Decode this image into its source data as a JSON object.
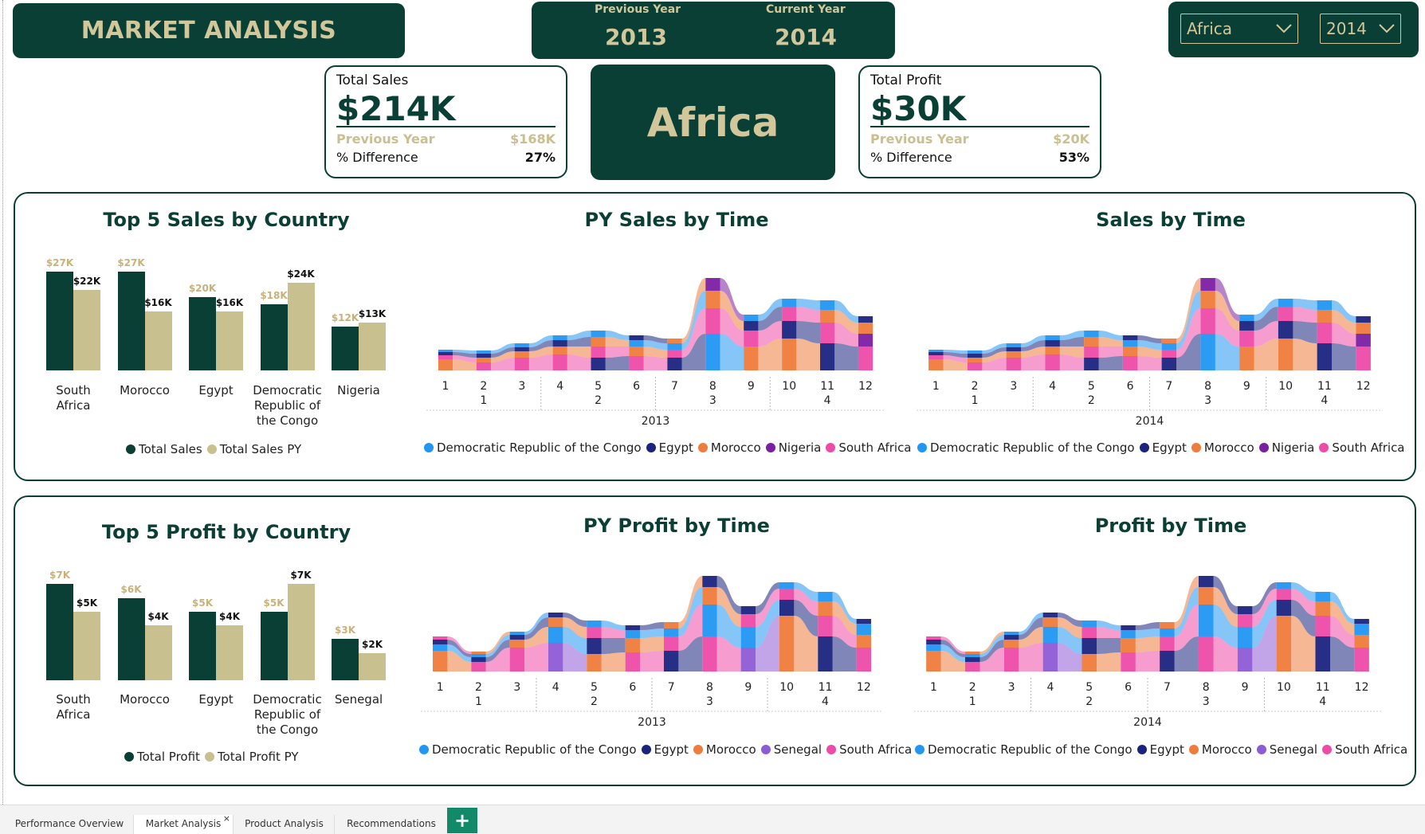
{
  "header": {
    "title": "MARKET ANALYSIS",
    "previous_year_label": "Previous Year",
    "previous_year": "2013",
    "current_year_label": "Current Year",
    "current_year": "2014"
  },
  "slicers": {
    "region": "Africa",
    "year": "2014"
  },
  "kpis": {
    "sales": {
      "label": "Total Sales",
      "value": "$214K",
      "py_label": "Previous Year",
      "py_value": "$168K",
      "diff_label": "% Difference",
      "diff_value": "27%"
    },
    "region_name": "Africa",
    "profit": {
      "label": "Total Profit",
      "value": "$30K",
      "py_label": "Previous Year",
      "py_value": "$20K",
      "diff_label": "% Difference",
      "diff_value": "53%"
    }
  },
  "sales_panel": {
    "bar_title": "Top 5 Sales by Country",
    "py_title": "PY Sales by Time",
    "cy_title": "Sales by Time",
    "py_year": "2013",
    "cy_year": "2014",
    "legend": [
      "Total Sales",
      "Total Sales PY"
    ],
    "stream_legend": [
      "Democratic Republic of the Congo",
      "Egypt",
      "Morocco",
      "Nigeria",
      "South Africa"
    ]
  },
  "profit_panel": {
    "bar_title": "Top 5 Profit by Country",
    "py_title": "PY Profit by Time",
    "cy_title": "Profit by Time",
    "py_year": "2013",
    "cy_year": "2014",
    "legend": [
      "Total Profit",
      "Total Profit PY"
    ],
    "stream_legend": [
      "Democratic Republic of the Congo",
      "Egypt",
      "Morocco",
      "Senegal",
      "South Africa"
    ]
  },
  "colors": {
    "dark_green": "#0a3f35",
    "tan": "#c9c08f",
    "congo": "#2196f3",
    "egypt": "#1a237e",
    "morocco": "#ef7b3c",
    "nigeria": "#7b1fa2",
    "senegal": "#8e5bd6",
    "south_africa": "#ee4ba8"
  },
  "chart_data": [
    {
      "type": "bar",
      "title": "Top 5 Sales by Country",
      "categories": [
        "South Africa",
        "Morocco",
        "Egypt",
        "Democratic Republic of the Congo",
        "Nigeria"
      ],
      "series": [
        {
          "name": "Total Sales",
          "values": [
            27,
            27,
            20,
            18,
            12
          ],
          "labels": [
            "$27K",
            "$27K",
            "$20K",
            "$18K",
            "$12K"
          ]
        },
        {
          "name": "Total Sales PY",
          "values": [
            22,
            16,
            16,
            24,
            13
          ],
          "labels": [
            "$22K",
            "$16K",
            "$16K",
            "$24K",
            "$13K"
          ]
        }
      ],
      "ylim": [
        0,
        30
      ]
    },
    {
      "type": "area",
      "title": "PY Sales by Time",
      "x": [
        1,
        2,
        3,
        4,
        5,
        6,
        7,
        8,
        9,
        10,
        11,
        12
      ],
      "x_quarters": [
        "",
        "1",
        "",
        "",
        "2",
        "",
        "",
        "3",
        "",
        "",
        "4",
        ""
      ],
      "x_group": "2013",
      "series_names": [
        "Democratic Republic of the Congo",
        "Egypt",
        "Morocco",
        "Nigeria",
        "South Africa"
      ]
    },
    {
      "type": "area",
      "title": "Sales by Time",
      "x": [
        1,
        2,
        3,
        4,
        5,
        6,
        7,
        8,
        9,
        10,
        11,
        12
      ],
      "x_quarters": [
        "",
        "1",
        "",
        "",
        "2",
        "",
        "",
        "3",
        "",
        "",
        "4",
        ""
      ],
      "x_group": "2014",
      "series_names": [
        "Democratic Republic of the Congo",
        "Egypt",
        "Morocco",
        "Nigeria",
        "South Africa"
      ]
    },
    {
      "type": "bar",
      "title": "Top 5 Profit by Country",
      "categories": [
        "South Africa",
        "Morocco",
        "Egypt",
        "Democratic Republic of the Congo",
        "Senegal"
      ],
      "series": [
        {
          "name": "Total Profit",
          "values": [
            7,
            6,
            5,
            5,
            3
          ],
          "labels": [
            "$7K",
            "$6K",
            "$5K",
            "$5K",
            "$3K"
          ]
        },
        {
          "name": "Total Profit PY",
          "values": [
            5,
            4,
            4,
            7,
            2
          ],
          "labels": [
            "$5K",
            "$4K",
            "$4K",
            "$7K",
            "$2K"
          ]
        }
      ],
      "ylim": [
        0,
        8
      ]
    },
    {
      "type": "area",
      "title": "PY Profit by Time",
      "x": [
        1,
        2,
        3,
        4,
        5,
        6,
        7,
        8,
        9,
        10,
        11,
        12
      ],
      "x_quarters": [
        "",
        "1",
        "",
        "",
        "2",
        "",
        "",
        "3",
        "",
        "",
        "4",
        ""
      ],
      "x_group": "2013",
      "series_names": [
        "Democratic Republic of the Congo",
        "Egypt",
        "Morocco",
        "Senegal",
        "South Africa"
      ]
    },
    {
      "type": "area",
      "title": "Profit by Time",
      "x": [
        1,
        2,
        3,
        4,
        5,
        6,
        7,
        8,
        9,
        10,
        11,
        12
      ],
      "x_quarters": [
        "",
        "1",
        "",
        "",
        "2",
        "",
        "",
        "3",
        "",
        "",
        "4",
        ""
      ],
      "x_group": "2014",
      "series_names": [
        "Democratic Republic of the Congo",
        "Egypt",
        "Morocco",
        "Senegal",
        "South Africa"
      ]
    }
  ],
  "tabs": [
    "Performance Overview",
    "Market Analysis",
    "Product Analysis",
    "Recommendations"
  ],
  "add_tab_label": "+",
  "close_tab_glyph": "×"
}
